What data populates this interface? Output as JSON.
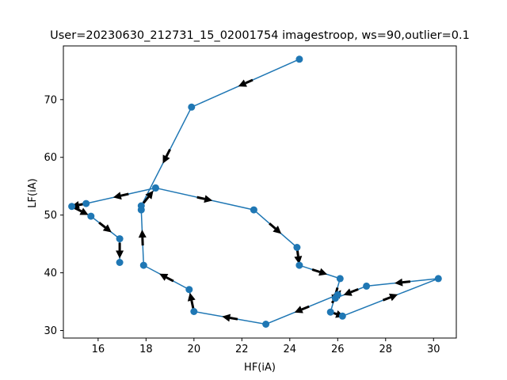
{
  "chart_data": {
    "type": "line",
    "title": "User=20230630_212731_15_02001754 imagestroop, ws=90,outlier=0.1",
    "xlabel": "HF(iA)",
    "ylabel": "LF(iA)",
    "xlim": [
      14.55,
      30.95
    ],
    "ylim": [
      28.7,
      79.3
    ],
    "xticks": [
      16,
      18,
      20,
      22,
      24,
      26,
      28,
      30
    ],
    "yticks": [
      30,
      40,
      50,
      60,
      70
    ],
    "grid": false,
    "markers": true,
    "arrows": true,
    "color": "#1f77b4",
    "arrow_color": "#000000",
    "series": [
      {
        "x": [
          24.4,
          19.9,
          17.8,
          18.4,
          22.5,
          24.3,
          24.4,
          26.1,
          25.7,
          26.2,
          30.2,
          27.2,
          25.9,
          26.0,
          23.0,
          20.0,
          19.8,
          17.9,
          17.8
        ],
        "y": [
          77.0,
          68.7,
          51.6,
          54.7,
          50.9,
          44.4,
          41.3,
          39.0,
          33.2,
          32.5,
          39.0,
          37.7,
          35.6,
          36.2,
          31.1,
          33.3,
          37.1,
          41.3,
          50.9
        ]
      },
      {
        "x": [
          18.4,
          15.5,
          14.9,
          15.7,
          16.9,
          16.9
        ],
        "y": [
          54.7,
          52.0,
          51.5,
          49.8,
          45.9,
          41.8
        ]
      }
    ]
  }
}
